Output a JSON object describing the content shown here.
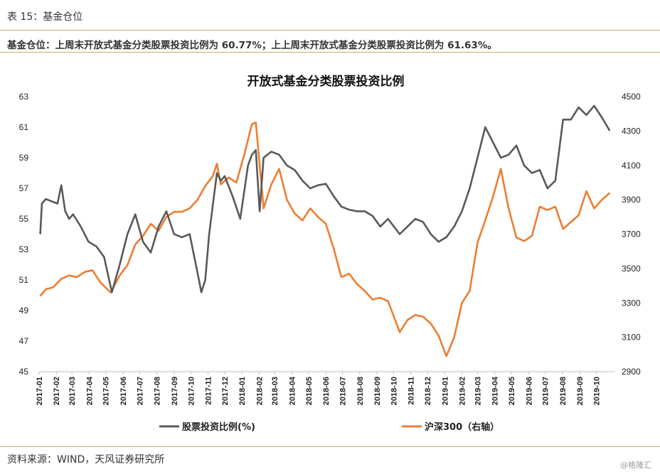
{
  "header": {
    "table_label": "表 15：基金仓位",
    "summary": "基金仓位：上周末开放式基金分类股票投资比例为 60.77%；上上周末开放式基金分类股票投资比例为 61.63%。"
  },
  "footer": {
    "source": "资料来源：WIND，天风证券研究所",
    "watermark": "@格隆汇"
  },
  "colors": {
    "series1": "#595959",
    "series2": "#ed7d31",
    "rule": "#c9a96e"
  },
  "chart_data": {
    "type": "line",
    "title": "开放式基金分类股票投资比例",
    "x_categories": [
      "2017-01",
      "2017-02",
      "2017-03",
      "2017-04",
      "2017-05",
      "2017-06",
      "2017-07",
      "2017-08",
      "2017-09",
      "2017-10",
      "2017-11",
      "2017-12",
      "2018-01",
      "2018-02",
      "2018-03",
      "2018-04",
      "2018-05",
      "2018-06",
      "2018-07",
      "2018-08",
      "2018-09",
      "2018-10",
      "2018-11",
      "2018-12",
      "2019-01",
      "2019-02",
      "2019-03",
      "2019-04",
      "2019-05",
      "2019-06",
      "2019-07",
      "2019-08",
      "2019-09",
      "2019-10"
    ],
    "y_left": {
      "min": 45,
      "max": 63,
      "ticks": [
        "45",
        "47",
        "49",
        "51",
        "53",
        "55",
        "57",
        "59",
        "61",
        "63"
      ]
    },
    "y_right": {
      "min": 2900,
      "max": 4500,
      "ticks": [
        "2900",
        "3100",
        "3300",
        "3500",
        "3700",
        "3900",
        "4100",
        "4300",
        "4500"
      ]
    },
    "legend_position": "bottom",
    "series": [
      {
        "name": "股票投资比例(%)",
        "axis": "left",
        "x": [
          "2017-01-03",
          "2017-01-06",
          "2017-01-13",
          "2017-01-20",
          "2017-02-03",
          "2017-02-10",
          "2017-02-17",
          "2017-02-24",
          "2017-03-03",
          "2017-03-17",
          "2017-03-31",
          "2017-04-14",
          "2017-04-28",
          "2017-05-12",
          "2017-05-26",
          "2017-06-09",
          "2017-06-23",
          "2017-07-07",
          "2017-07-21",
          "2017-08-04",
          "2017-08-18",
          "2017-09-01",
          "2017-09-15",
          "2017-09-29",
          "2017-10-13",
          "2017-10-20",
          "2017-10-27",
          "2017-11-03",
          "2017-11-10",
          "2017-11-17",
          "2017-11-24",
          "2017-12-01",
          "2017-12-15",
          "2017-12-29",
          "2018-01-12",
          "2018-01-19",
          "2018-01-26",
          "2018-02-02",
          "2018-02-09",
          "2018-02-23",
          "2018-03-09",
          "2018-03-23",
          "2018-04-06",
          "2018-04-20",
          "2018-05-04",
          "2018-05-18",
          "2018-06-01",
          "2018-06-15",
          "2018-06-29",
          "2018-07-13",
          "2018-07-27",
          "2018-08-10",
          "2018-08-24",
          "2018-09-07",
          "2018-09-21",
          "2018-10-12",
          "2018-10-26",
          "2018-11-09",
          "2018-11-23",
          "2018-12-07",
          "2018-12-21",
          "2019-01-04",
          "2019-01-18",
          "2019-02-01",
          "2019-02-15",
          "2019-03-01",
          "2019-03-15",
          "2019-03-29",
          "2019-04-12",
          "2019-04-26",
          "2019-05-10",
          "2019-05-24",
          "2019-06-07",
          "2019-06-21",
          "2019-07-05",
          "2019-07-19",
          "2019-08-02",
          "2019-08-16",
          "2019-08-30",
          "2019-09-13",
          "2019-09-27",
          "2019-10-11",
          "2019-10-25"
        ],
        "values": [
          54.0,
          56.0,
          56.3,
          56.2,
          56.0,
          57.2,
          55.5,
          55.0,
          55.3,
          54.5,
          53.5,
          53.2,
          52.5,
          50.2,
          52.0,
          54.0,
          55.3,
          53.5,
          52.8,
          54.5,
          55.5,
          54.0,
          53.8,
          54.0,
          51.5,
          50.2,
          51.0,
          54.0,
          56.0,
          58.0,
          57.5,
          57.8,
          56.5,
          55.0,
          58.5,
          59.2,
          59.5,
          55.5,
          59.0,
          59.4,
          59.2,
          58.5,
          58.2,
          57.5,
          57.0,
          57.2,
          57.3,
          56.5,
          55.8,
          55.6,
          55.5,
          55.5,
          55.2,
          54.5,
          55.0,
          54.0,
          54.5,
          55.0,
          54.8,
          54.0,
          53.5,
          53.8,
          54.5,
          55.5,
          57.0,
          59.0,
          61.0,
          60.0,
          59.0,
          59.2,
          59.8,
          58.5,
          58.0,
          58.2,
          57.0,
          57.5,
          61.5,
          61.5,
          62.3,
          61.8,
          62.4,
          61.63,
          60.77
        ]
      },
      {
        "name": "沪深300（右轴）",
        "axis": "right",
        "x": [
          "2017-01-03",
          "2017-01-13",
          "2017-01-26",
          "2017-02-10",
          "2017-02-24",
          "2017-03-10",
          "2017-03-24",
          "2017-04-07",
          "2017-04-21",
          "2017-05-10",
          "2017-05-26",
          "2017-06-09",
          "2017-06-23",
          "2017-07-07",
          "2017-07-21",
          "2017-08-04",
          "2017-08-18",
          "2017-09-01",
          "2017-09-15",
          "2017-09-29",
          "2017-10-13",
          "2017-10-27",
          "2017-11-10",
          "2017-11-17",
          "2017-11-24",
          "2017-12-08",
          "2017-12-22",
          "2018-01-05",
          "2018-01-19",
          "2018-01-26",
          "2018-02-09",
          "2018-02-23",
          "2018-03-09",
          "2018-03-23",
          "2018-04-06",
          "2018-04-20",
          "2018-05-04",
          "2018-05-18",
          "2018-06-01",
          "2018-06-15",
          "2018-06-29",
          "2018-07-13",
          "2018-07-27",
          "2018-08-10",
          "2018-08-24",
          "2018-09-07",
          "2018-09-21",
          "2018-10-12",
          "2018-10-26",
          "2018-11-09",
          "2018-11-23",
          "2018-12-07",
          "2018-12-21",
          "2019-01-04",
          "2019-01-18",
          "2019-02-01",
          "2019-02-15",
          "2019-03-01",
          "2019-03-15",
          "2019-03-29",
          "2019-04-12",
          "2019-04-26",
          "2019-05-10",
          "2019-05-24",
          "2019-06-07",
          "2019-06-21",
          "2019-07-05",
          "2019-07-19",
          "2019-08-02",
          "2019-08-16",
          "2019-08-30",
          "2019-09-13",
          "2019-09-27",
          "2019-10-11",
          "2019-10-25"
        ],
        "values": [
          3340,
          3380,
          3390,
          3440,
          3460,
          3450,
          3480,
          3490,
          3420,
          3360,
          3460,
          3520,
          3640,
          3690,
          3760,
          3720,
          3800,
          3830,
          3830,
          3850,
          3900,
          3980,
          4040,
          4110,
          3990,
          4030,
          4000,
          4160,
          4340,
          4350,
          3850,
          3990,
          4080,
          3900,
          3820,
          3780,
          3850,
          3800,
          3760,
          3620,
          3450,
          3470,
          3410,
          3370,
          3320,
          3330,
          3310,
          3130,
          3200,
          3230,
          3220,
          3180,
          3110,
          2990,
          3100,
          3300,
          3370,
          3650,
          3780,
          3920,
          4080,
          3850,
          3680,
          3660,
          3690,
          3860,
          3840,
          3860,
          3730,
          3770,
          3810,
          3950,
          3850,
          3900,
          3940
        ]
      }
    ]
  }
}
